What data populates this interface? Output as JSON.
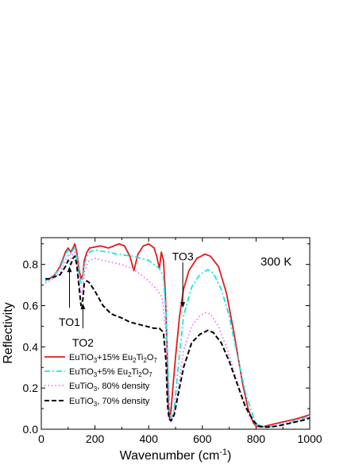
{
  "chart_data": {
    "type": "line",
    "xlabel_main": "Wavenumber (cm",
    "xlabel_sup": "-1",
    "xlabel_end": ")",
    "ylabel": "Reflectivity",
    "xlim": [
      0,
      1000
    ],
    "ylim": [
      0.0,
      0.93
    ],
    "x_ticks": [
      0,
      200,
      400,
      600,
      800,
      1000
    ],
    "y_ticks": [
      0.0,
      0.2,
      0.4,
      0.6,
      0.8
    ],
    "x_tick_labels": [
      "0",
      "200",
      "400",
      "600",
      "800",
      "1000"
    ],
    "y_tick_labels": [
      "0.0",
      "0.2",
      "0.4",
      "0.6",
      "0.8"
    ],
    "temperature_label": "300 K",
    "annotations": [
      {
        "text": "TO1",
        "x": 105,
        "y_text": 0.52,
        "arrow_from": 0.59,
        "arrow_to": 0.79
      },
      {
        "text": "TO2",
        "x": 155,
        "y_text": 0.42,
        "arrow_from": 0.49,
        "arrow_to": 0.61
      },
      {
        "text": "TO3",
        "x": 527,
        "y_text": 0.84,
        "arrow_from": 0.81,
        "arrow_to": 0.59
      }
    ],
    "series": [
      {
        "legend": [
          {
            "t": "EuTiO"
          },
          {
            "t": "3",
            "s": "sub"
          },
          {
            "t": "+15% Eu"
          },
          {
            "t": "2",
            "s": "sub"
          },
          {
            "t": "Ti"
          },
          {
            "t": "2",
            "s": "sub"
          },
          {
            "t": "O"
          },
          {
            "t": "7",
            "s": "sub"
          }
        ],
        "color": "#e41a1c",
        "dash": "",
        "x": [
          15,
          30,
          50,
          70,
          90,
          100,
          110,
          118,
          125,
          132,
          140,
          148,
          155,
          160,
          170,
          180,
          200,
          220,
          250,
          270,
          290,
          310,
          330,
          345,
          360,
          380,
          400,
          420,
          430,
          440,
          447,
          455,
          462,
          468,
          473,
          478,
          483,
          490,
          500,
          515,
          530,
          550,
          580,
          610,
          630,
          660,
          690,
          720,
          750,
          770,
          790,
          800,
          820,
          850,
          900,
          950,
          1000
        ],
        "y": [
          0.72,
          0.73,
          0.75,
          0.79,
          0.86,
          0.88,
          0.86,
          0.88,
          0.9,
          0.86,
          0.78,
          0.73,
          0.75,
          0.82,
          0.86,
          0.88,
          0.885,
          0.89,
          0.88,
          0.89,
          0.9,
          0.89,
          0.84,
          0.77,
          0.85,
          0.89,
          0.9,
          0.88,
          0.84,
          0.78,
          0.86,
          0.82,
          0.66,
          0.42,
          0.13,
          0.05,
          0.09,
          0.2,
          0.35,
          0.55,
          0.68,
          0.77,
          0.83,
          0.85,
          0.84,
          0.79,
          0.66,
          0.45,
          0.22,
          0.1,
          0.03,
          0.015,
          0.01,
          0.02,
          0.035,
          0.05,
          0.07
        ]
      },
      {
        "legend": [
          {
            "t": "EuTiO"
          },
          {
            "t": "3",
            "s": "sub"
          },
          {
            "t": "+5% Eu"
          },
          {
            "t": "2",
            "s": "sub"
          },
          {
            "t": "Ti"
          },
          {
            "t": "2",
            "s": "sub"
          },
          {
            "t": "O"
          },
          {
            "t": "7",
            "s": "sub"
          }
        ],
        "color": "#17e6e6",
        "dash": "7,3,2,3",
        "x": [
          15,
          30,
          50,
          70,
          90,
          100,
          110,
          118,
          125,
          132,
          140,
          148,
          155,
          160,
          170,
          180,
          200,
          220,
          250,
          280,
          310,
          340,
          370,
          400,
          420,
          440,
          455,
          465,
          472,
          478,
          485,
          495,
          510,
          530,
          560,
          590,
          620,
          640,
          670,
          700,
          730,
          760,
          790,
          800,
          830,
          870,
          920,
          970,
          1000
        ],
        "y": [
          0.72,
          0.73,
          0.75,
          0.78,
          0.85,
          0.87,
          0.85,
          0.87,
          0.88,
          0.84,
          0.76,
          0.71,
          0.73,
          0.8,
          0.84,
          0.86,
          0.87,
          0.865,
          0.86,
          0.85,
          0.845,
          0.84,
          0.83,
          0.82,
          0.8,
          0.78,
          0.74,
          0.55,
          0.3,
          0.08,
          0.05,
          0.1,
          0.3,
          0.55,
          0.69,
          0.75,
          0.775,
          0.76,
          0.68,
          0.55,
          0.36,
          0.18,
          0.06,
          0.025,
          0.01,
          0.015,
          0.03,
          0.05,
          0.065
        ]
      },
      {
        "legend": [
          {
            "t": "EuTiO"
          },
          {
            "t": "3",
            "s": "sub"
          },
          {
            "t": ", 80% density"
          }
        ],
        "color": "#ff66ff",
        "dash": "1.5,3",
        "x": [
          15,
          30,
          50,
          70,
          90,
          100,
          110,
          118,
          125,
          132,
          140,
          148,
          155,
          160,
          170,
          180,
          200,
          230,
          260,
          300,
          340,
          370,
          400,
          430,
          450,
          462,
          470,
          476,
          483,
          495,
          510,
          530,
          560,
          590,
          610,
          630,
          660,
          690,
          720,
          750,
          780,
          800,
          830,
          870,
          920,
          970,
          1000
        ],
        "y": [
          0.71,
          0.72,
          0.74,
          0.76,
          0.82,
          0.85,
          0.83,
          0.85,
          0.86,
          0.81,
          0.72,
          0.66,
          0.68,
          0.76,
          0.8,
          0.82,
          0.83,
          0.82,
          0.81,
          0.8,
          0.78,
          0.75,
          0.72,
          0.68,
          0.64,
          0.5,
          0.25,
          0.06,
          0.04,
          0.08,
          0.2,
          0.38,
          0.5,
          0.55,
          0.565,
          0.56,
          0.5,
          0.4,
          0.27,
          0.14,
          0.05,
          0.02,
          0.01,
          0.015,
          0.03,
          0.045,
          0.06
        ]
      },
      {
        "legend": [
          {
            "t": "EuTiO"
          },
          {
            "t": "3",
            "s": "sub"
          },
          {
            "t": ", 70% density"
          }
        ],
        "color": "#000000",
        "dash": "6,3",
        "x": [
          15,
          30,
          50,
          70,
          90,
          100,
          110,
          118,
          125,
          132,
          140,
          148,
          155,
          160,
          170,
          180,
          200,
          230,
          260,
          300,
          330,
          360,
          390,
          420,
          440,
          455,
          465,
          470,
          476,
          483,
          495,
          510,
          530,
          560,
          590,
          620,
          640,
          670,
          700,
          730,
          760,
          790,
          810,
          840,
          880,
          930,
          980,
          1000
        ],
        "y": [
          0.73,
          0.73,
          0.74,
          0.75,
          0.79,
          0.82,
          0.8,
          0.83,
          0.84,
          0.8,
          0.7,
          0.6,
          0.63,
          0.71,
          0.72,
          0.71,
          0.67,
          0.6,
          0.56,
          0.54,
          0.52,
          0.51,
          0.5,
          0.49,
          0.49,
          0.47,
          0.32,
          0.12,
          0.05,
          0.04,
          0.07,
          0.17,
          0.3,
          0.42,
          0.46,
          0.48,
          0.47,
          0.42,
          0.33,
          0.22,
          0.11,
          0.04,
          0.015,
          0.01,
          0.015,
          0.03,
          0.045,
          0.055
        ]
      }
    ]
  }
}
